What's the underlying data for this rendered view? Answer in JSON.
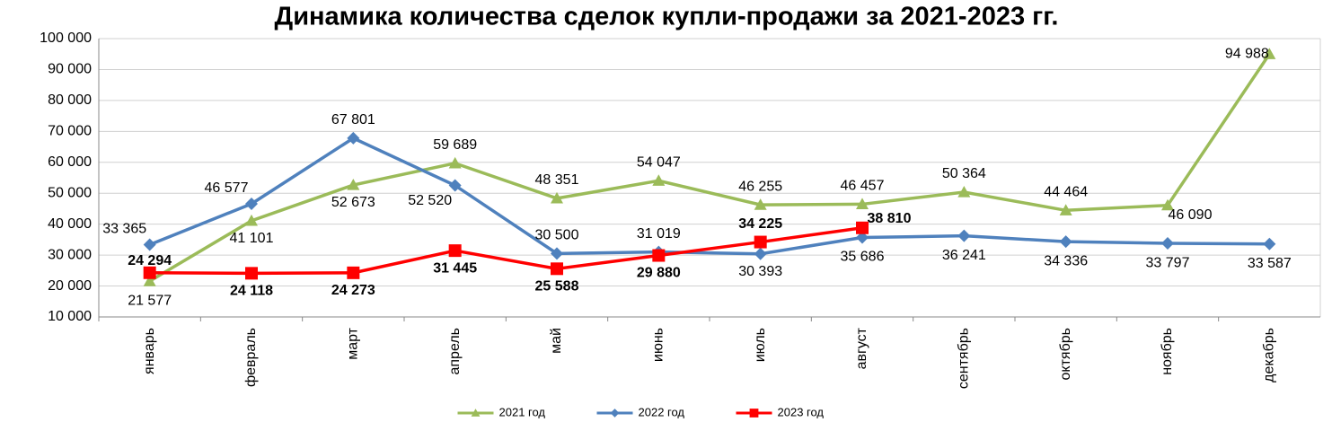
{
  "chart_data": {
    "type": "line",
    "title": "Динамика количества сделок купли-продажи за 2021-2023 гг.",
    "categories": [
      "январь",
      "февраль",
      "март",
      "апрель",
      "май",
      "июнь",
      "июль",
      "август",
      "сентябрь",
      "октябрь",
      "ноябрь",
      "декабрь"
    ],
    "series": [
      {
        "name": "2021 год",
        "color": "#9bbb59",
        "marker": "triangle",
        "values": [
          21577,
          41101,
          52673,
          59689,
          48351,
          54047,
          46255,
          46457,
          50364,
          44464,
          46090,
          94988
        ],
        "value_labels": [
          "21 577",
          "41 101",
          "52 673",
          "59 689",
          "48 351",
          "54 047",
          "46 255",
          "46 457",
          "50 364",
          "44 464",
          "46 090",
          "94 988"
        ]
      },
      {
        "name": "2022 год",
        "color": "#4f81bd",
        "marker": "diamond",
        "values": [
          33365,
          46577,
          67801,
          52520,
          30500,
          31019,
          30393,
          35686,
          36241,
          34336,
          33797,
          33587
        ],
        "value_labels": [
          "33 365",
          "46 577",
          "67 801",
          "52 520",
          "30 500",
          "31 019",
          "30 393",
          "35 686",
          "36 241",
          "34 336",
          "33 797",
          "33 587"
        ]
      },
      {
        "name": "2023 год",
        "color": "#ff0000",
        "marker": "square",
        "bold_labels": true,
        "values": [
          24294,
          24118,
          24273,
          31445,
          25588,
          29880,
          34225,
          38810,
          null,
          null,
          null,
          null
        ],
        "value_labels": [
          "24 294",
          "24 118",
          "24 273",
          "31 445",
          "25 588",
          "29 880",
          "34 225",
          "38 810",
          null,
          null,
          null,
          null
        ]
      }
    ],
    "ylim": [
      10000,
      100000
    ],
    "yticks": [
      {
        "value": 10000,
        "label": "10 000"
      },
      {
        "value": 20000,
        "label": "20 000"
      },
      {
        "value": 30000,
        "label": "30 000"
      },
      {
        "value": 40000,
        "label": "40 000"
      },
      {
        "value": 50000,
        "label": "50 000"
      },
      {
        "value": 60000,
        "label": "60 000"
      },
      {
        "value": 70000,
        "label": "70 000"
      },
      {
        "value": 80000,
        "label": "80 000"
      },
      {
        "value": 90000,
        "label": "90 000"
      },
      {
        "value": 100000,
        "label": "100 000"
      }
    ],
    "grid": true,
    "legend": "bottom"
  }
}
